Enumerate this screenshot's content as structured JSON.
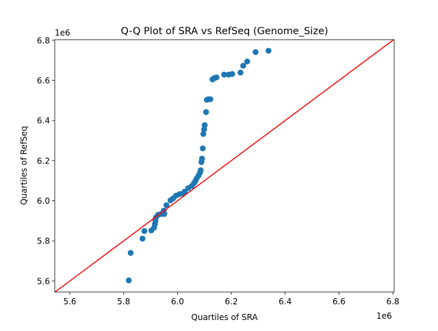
{
  "chart_data": {
    "type": "scatter",
    "title": "Q-Q Plot of SRA vs RefSeq (Genome_Size)",
    "xlabel": "Quartiles of SRA",
    "ylabel": "Quartiles of RefSeq",
    "x_offset_label": "1e6",
    "y_offset_label": "1e6",
    "xlim": [
      5.544,
      6.805
    ],
    "ylim": [
      5.545,
      6.803
    ],
    "xticks": [
      "5.6",
      "5.8",
      "6.0",
      "6.2",
      "6.4",
      "6.6",
      "6.8"
    ],
    "yticks": [
      "5.6",
      "5.8",
      "6.0",
      "6.2",
      "6.4",
      "6.6",
      "6.8"
    ],
    "grid": false,
    "point_color": "#1f77b4",
    "reference_line": {
      "type": "y=x",
      "color": "#ff0000"
    },
    "points": [
      [
        5.819,
        5.603
      ],
      [
        5.826,
        5.74
      ],
      [
        5.87,
        5.811
      ],
      [
        5.877,
        5.849
      ],
      [
        5.903,
        5.852
      ],
      [
        5.913,
        5.866
      ],
      [
        5.916,
        5.883
      ],
      [
        5.918,
        5.9
      ],
      [
        5.92,
        5.917
      ],
      [
        5.928,
        5.93
      ],
      [
        5.938,
        5.934
      ],
      [
        5.951,
        5.934
      ],
      [
        5.949,
        5.951
      ],
      [
        5.959,
        5.978
      ],
      [
        5.974,
        6.002
      ],
      [
        5.984,
        6.012
      ],
      [
        5.995,
        6.026
      ],
      [
        6.007,
        6.033
      ],
      [
        6.02,
        6.036
      ],
      [
        6.027,
        6.046
      ],
      [
        6.04,
        6.063
      ],
      [
        6.053,
        6.074
      ],
      [
        6.061,
        6.087
      ],
      [
        6.066,
        6.097
      ],
      [
        6.071,
        6.111
      ],
      [
        6.078,
        6.125
      ],
      [
        6.083,
        6.138
      ],
      [
        6.086,
        6.152
      ],
      [
        6.089,
        6.193
      ],
      [
        6.091,
        6.21
      ],
      [
        6.094,
        6.261
      ],
      [
        6.096,
        6.333
      ],
      [
        6.099,
        6.356
      ],
      [
        6.101,
        6.377
      ],
      [
        6.106,
        6.442
      ],
      [
        6.109,
        6.503
      ],
      [
        6.114,
        6.506
      ],
      [
        6.122,
        6.506
      ],
      [
        6.13,
        6.605
      ],
      [
        6.137,
        6.612
      ],
      [
        6.145,
        6.615
      ],
      [
        6.173,
        6.629
      ],
      [
        6.19,
        6.629
      ],
      [
        6.203,
        6.632
      ],
      [
        6.234,
        6.639
      ],
      [
        6.244,
        6.673
      ],
      [
        6.259,
        6.694
      ],
      [
        6.29,
        6.741
      ],
      [
        6.338,
        6.748
      ]
    ]
  }
}
